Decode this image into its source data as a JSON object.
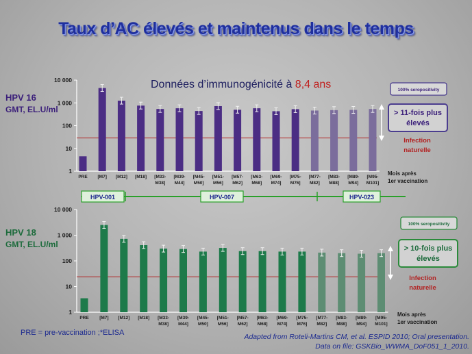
{
  "title": "Taux d’AC élevés et maintenus dans le temps",
  "subtitle": {
    "prefix": "Données d’immunogénicité à ",
    "highlight": "8,4 ans"
  },
  "colors": {
    "hpv16_bar": "#4b2d84",
    "hpv16_bar_light": "#7b6d9c",
    "hpv18_bar": "#1d7a4a",
    "hpv18_bar_light": "#5d8d73",
    "threshold_line": "#b22222",
    "title_blue": "#1f2f9e",
    "study_green": "#2aa02a"
  },
  "studies": [
    "HPV-001",
    "HPV-007",
    "HPV-023"
  ],
  "footnotes": {
    "left": "PRE = pre-vaccination ;*ELISA",
    "right_line1": "Adapted from Roteli-Martins CM, et al. ESPID 2010; Oral presentation.",
    "right_line2": "Data on file: GSKBio_WWMA_DoF051_1_2010."
  },
  "chart_data": [
    {
      "type": "bar",
      "label_top": "HPV 16",
      "ylabel": "GMT, EL.U/ml",
      "yscale": "log",
      "ylim": [
        1,
        10000
      ],
      "yticks": [
        "1",
        "10",
        "100",
        "1 000",
        "10 000"
      ],
      "categories": [
        [
          "PRE"
        ],
        [
          "[M7]"
        ],
        [
          "[M12]"
        ],
        [
          "[M18]"
        ],
        [
          "[M33-",
          "M38]"
        ],
        [
          "[M39-",
          "M44]"
        ],
        [
          "[M45-",
          "M50]"
        ],
        [
          "[M51-",
          "M56]"
        ],
        [
          "[M57-",
          "M62]"
        ],
        [
          "[M63-",
          "M68]"
        ],
        [
          "[M69-",
          "M74]"
        ],
        [
          "[M75-",
          "M76]"
        ],
        [
          "[M77-",
          "M82]"
        ],
        [
          "[M83-",
          "M88]"
        ],
        [
          "[M89-",
          "M94]"
        ],
        [
          "[M95-",
          "M101]"
        ]
      ],
      "values": [
        4.5,
        4500,
        1250,
        760,
        540,
        580,
        440,
        720,
        500,
        580,
        430,
        530,
        460,
        480,
        490,
        540
      ],
      "light_from_index": 12,
      "threshold": 29,
      "threshold_label": [
        "Infection",
        "naturelle"
      ],
      "xlabel": [
        "Mois après",
        "1er vaccination"
      ],
      "seropositivity": "100% seropositivity",
      "fold_text": [
        "> 11-fois plus",
        "élevés"
      ]
    },
    {
      "type": "bar",
      "label_top": "HPV 18",
      "ylabel": "GMT, EL.U/ml",
      "yscale": "log",
      "ylim": [
        1,
        10000
      ],
      "yticks": [
        "1",
        "10",
        "100",
        "1 000",
        "10 000"
      ],
      "categories": [
        [
          "PRE"
        ],
        [
          "[M7]"
        ],
        [
          "[M12]"
        ],
        [
          "[M18]"
        ],
        [
          "[M33-",
          "M38]"
        ],
        [
          "[M39-",
          "M44]"
        ],
        [
          "[M45-",
          "M50]"
        ],
        [
          "[M51-",
          "M56]"
        ],
        [
          "[M57-",
          "M62]"
        ],
        [
          "[M63-",
          "M68]"
        ],
        [
          "[M69-",
          "M74]"
        ],
        [
          "[M75-",
          "M76]"
        ],
        [
          "[M77-",
          "M82]"
        ],
        [
          "[M83-",
          "M88]"
        ],
        [
          "[M89-",
          "M94]"
        ],
        [
          "[M95-",
          "M101]"
        ]
      ],
      "values": [
        3.5,
        2500,
        720,
        410,
        300,
        290,
        230,
        320,
        240,
        240,
        230,
        230,
        210,
        200,
        190,
        200
      ],
      "light_from_index": 12,
      "threshold": 24,
      "threshold_label": [
        "Infection",
        "naturelle"
      ],
      "xlabel": [
        "Mois après",
        "1er vaccination"
      ],
      "seropositivity": "100% seropositivity",
      "fold_text": [
        "> 10-fois plus",
        "élevés"
      ]
    }
  ]
}
